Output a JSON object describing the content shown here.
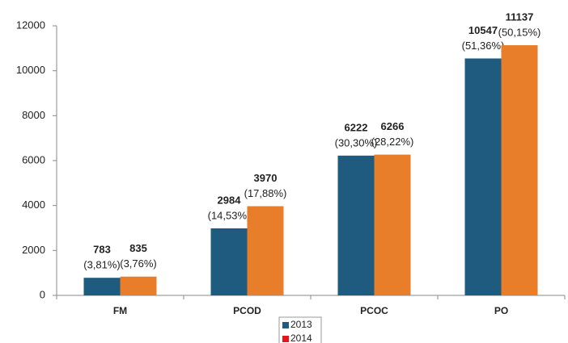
{
  "chart_data": {
    "type": "bar",
    "categories": [
      "FM",
      "PCOD",
      "PCOC",
      "PO"
    ],
    "series": [
      {
        "name": "2013",
        "color": "#1f5b7e",
        "legend_color": "#1f5b7e",
        "values": [
          783,
          2984,
          6222,
          10547
        ],
        "share_labels": [
          "(3,81%)",
          "(14,53%)",
          "(30,30%)",
          "(51,36%)"
        ]
      },
      {
        "name": "2014",
        "color": "#e97e2a",
        "legend_color": "#e8141c",
        "values": [
          835,
          3970,
          6266,
          11137
        ],
        "share_labels": [
          "(3,76%)",
          "(17,88%)",
          "(28,22%)",
          "(50,15%)"
        ]
      }
    ],
    "ylim": [
      0,
      12000
    ],
    "yticks": [
      0,
      2000,
      4000,
      6000,
      8000,
      10000,
      12000
    ],
    "grid": false,
    "legend": "bottom"
  }
}
